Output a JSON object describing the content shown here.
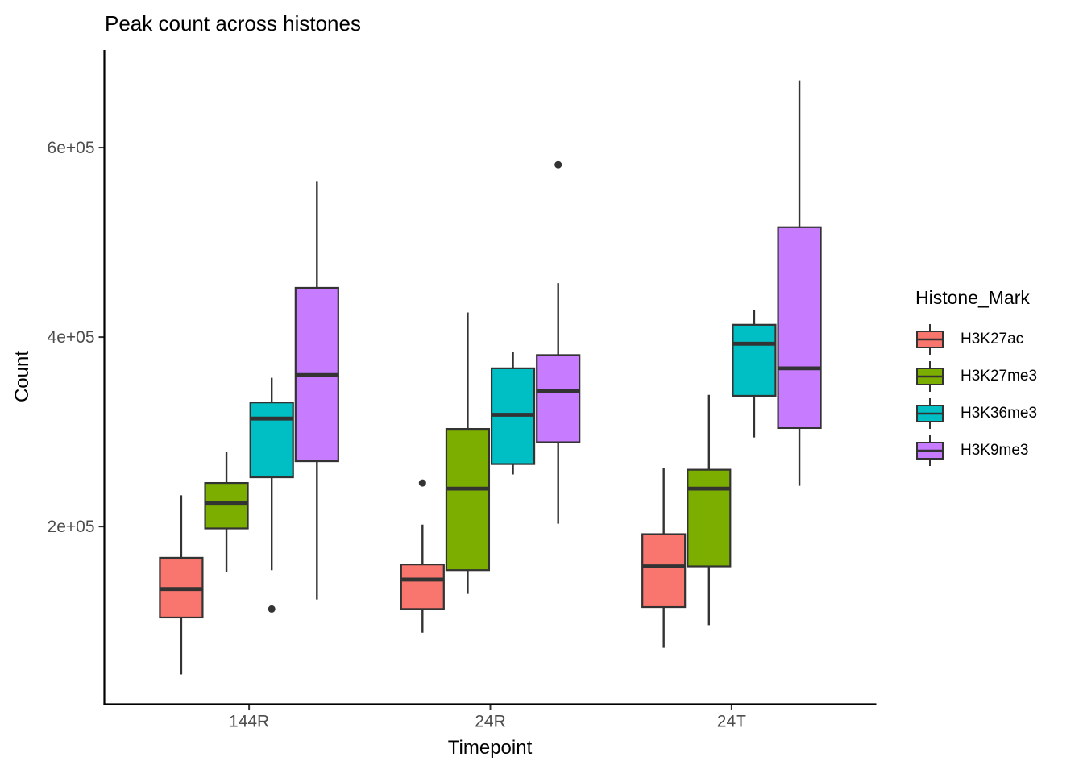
{
  "chart": {
    "title": "Peak count across histones",
    "xlabel": "Timepoint",
    "ylabel": "Count"
  },
  "legend": {
    "title": "Histone_Mark",
    "items": [
      {
        "label": "H3K27ac",
        "color": "#F8766D"
      },
      {
        "label": "H3K27me3",
        "color": "#7CAE00"
      },
      {
        "label": "H3K36me3",
        "color": "#00BFC4"
      },
      {
        "label": "H3K9me3",
        "color": "#C77CFF"
      }
    ]
  },
  "chart_data": {
    "type": "boxplot",
    "title": "Peak count across histones",
    "xlabel": "Timepoint",
    "ylabel": "Count",
    "categories": [
      "144R",
      "24R",
      "24T"
    ],
    "ylim": [
      12500,
      703000
    ],
    "y_ticks": [
      {
        "value": 200000,
        "label": "2e+05"
      },
      {
        "value": 400000,
        "label": "4e+05"
      },
      {
        "value": 600000,
        "label": "6e+05"
      }
    ],
    "grid": false,
    "legend_position": "right",
    "outline_color": "#333333",
    "series": [
      {
        "name": "H3K27ac",
        "color": "#F8766D",
        "boxes": [
          {
            "category": "144R",
            "low": 44000,
            "q1": 104000,
            "median": 134000,
            "q3": 167000,
            "high": 233000,
            "outliers": []
          },
          {
            "category": "24R",
            "low": 88000,
            "q1": 113000,
            "median": 144000,
            "q3": 160000,
            "high": 202000,
            "outliers": [
              246000
            ]
          },
          {
            "category": "24T",
            "low": 72000,
            "q1": 115000,
            "median": 158000,
            "q3": 192000,
            "high": 262000,
            "outliers": []
          }
        ]
      },
      {
        "name": "H3K27me3",
        "color": "#7CAE00",
        "boxes": [
          {
            "category": "144R",
            "low": 152000,
            "q1": 198000,
            "median": 225000,
            "q3": 246000,
            "high": 279000,
            "outliers": []
          },
          {
            "category": "24R",
            "low": 129000,
            "q1": 154000,
            "median": 240000,
            "q3": 303000,
            "high": 426000,
            "outliers": []
          },
          {
            "category": "24T",
            "low": 96000,
            "q1": 158000,
            "median": 240000,
            "q3": 260000,
            "high": 339000,
            "outliers": []
          }
        ]
      },
      {
        "name": "H3K36me3",
        "color": "#00BFC4",
        "boxes": [
          {
            "category": "144R",
            "low": 154000,
            "q1": 252000,
            "median": 314000,
            "q3": 331000,
            "high": 357000,
            "outliers": [
              113000
            ]
          },
          {
            "category": "24R",
            "low": 255000,
            "q1": 266000,
            "median": 318000,
            "q3": 367000,
            "high": 384000,
            "outliers": []
          },
          {
            "category": "24T",
            "low": 294000,
            "q1": 338000,
            "median": 393000,
            "q3": 413000,
            "high": 429000,
            "outliers": []
          }
        ]
      },
      {
        "name": "H3K9me3",
        "color": "#C77CFF",
        "boxes": [
          {
            "category": "144R",
            "low": 123000,
            "q1": 269000,
            "median": 360000,
            "q3": 452000,
            "high": 564000,
            "outliers": []
          },
          {
            "category": "24R",
            "low": 203000,
            "q1": 289000,
            "median": 343000,
            "q3": 381000,
            "high": 457000,
            "outliers": [
              582000
            ]
          },
          {
            "category": "24T",
            "low": 243000,
            "q1": 304000,
            "median": 367000,
            "q3": 516000,
            "high": 671000,
            "outliers": []
          }
        ]
      }
    ]
  }
}
